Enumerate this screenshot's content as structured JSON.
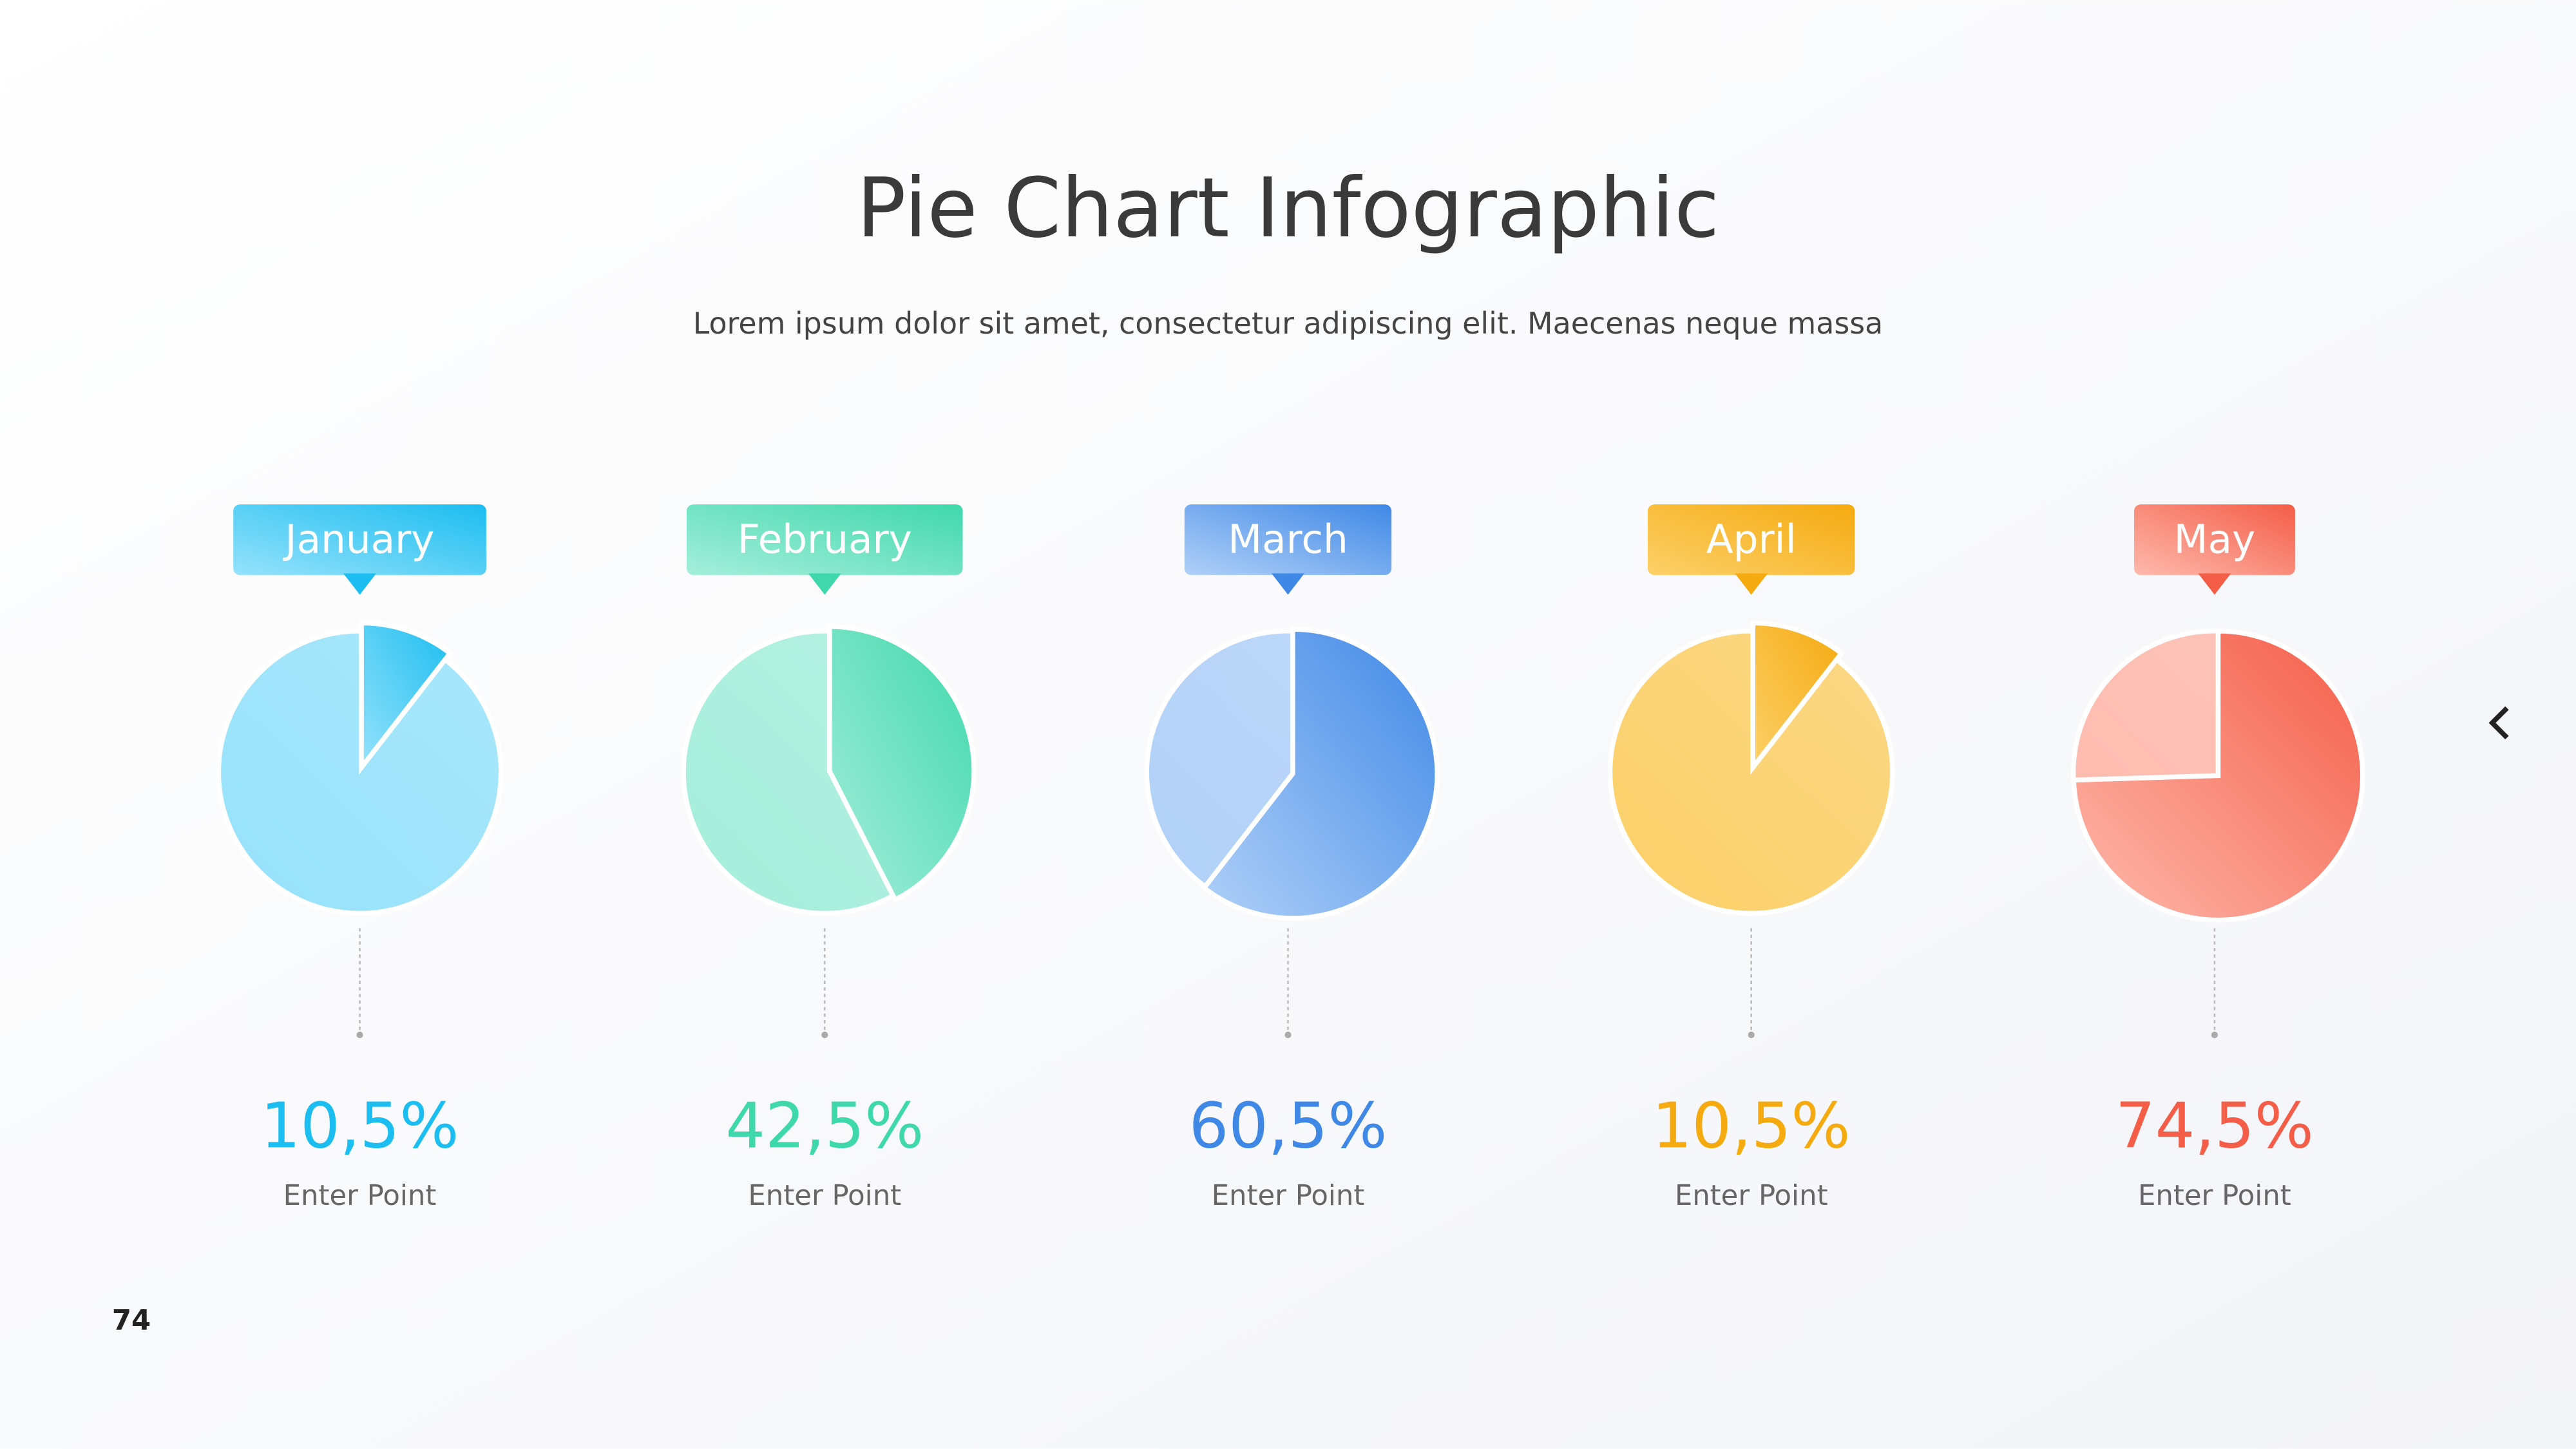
{
  "title": "Pie Chart Infographic",
  "subtitle": "Lorem ipsum dolor sit amet, consectetur adipiscing elit. Maecenas neque massa",
  "page_number": "74",
  "chart_data": [
    {
      "type": "pie",
      "title": "January",
      "values": [
        10.5
      ],
      "value_labels": [
        "10,5%"
      ],
      "caption": "Enter Point",
      "color": "#1cbdf0",
      "light_color": "#95e2fb"
    },
    {
      "type": "pie",
      "title": "February",
      "values": [
        42.5
      ],
      "value_labels": [
        "42,5%"
      ],
      "caption": "Enter Point",
      "color": "#3fd8ab",
      "light_color": "#a5eedb"
    },
    {
      "type": "pie",
      "title": "March",
      "values": [
        60.5
      ],
      "value_labels": [
        "60,5%"
      ],
      "caption": "Enter Point",
      "color": "#3f88e6",
      "light_color": "#b0d0f8"
    },
    {
      "type": "pie",
      "title": "April",
      "values": [
        10.5
      ],
      "value_labels": [
        "10,5%"
      ],
      "caption": "Enter Point",
      "color": "#f5aa10",
      "light_color": "#fcd068"
    },
    {
      "type": "pie",
      "title": "May",
      "values": [
        74.5
      ],
      "value_labels": [
        "74,5%"
      ],
      "caption": "Enter Point",
      "color": "#f45d48",
      "light_color": "#feb9ac"
    }
  ]
}
